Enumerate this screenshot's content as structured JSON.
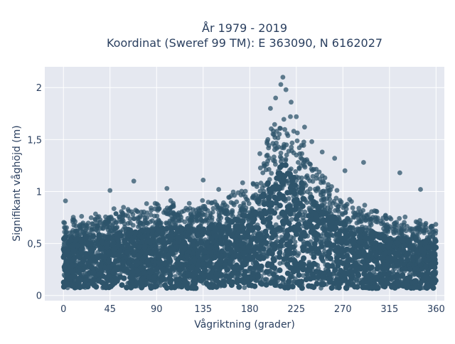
{
  "chart_data": {
    "type": "scatter",
    "title": "År 1979 - 2019",
    "subtitle": "Koordinat (Sweref 99 TM): E 363090, N 6162027",
    "xlabel": "Vågriktning (grader)",
    "ylabel": "Signifikant våghöjd (m)",
    "xlim": [
      -18,
      368
    ],
    "ylim": [
      -0.05,
      2.2
    ],
    "x_ticks": [
      0,
      45,
      90,
      135,
      180,
      225,
      270,
      315,
      360
    ],
    "x_tick_labels": [
      "0",
      "45",
      "90",
      "135",
      "180",
      "225",
      "270",
      "315",
      "360"
    ],
    "y_ticks": [
      0,
      0.5,
      1,
      1.5,
      2
    ],
    "y_tick_labels": [
      "0",
      "0,5",
      "1",
      "1,5",
      "2"
    ],
    "grid": true,
    "legend": "none",
    "colors": {
      "marker": "#2e546b",
      "plot_bg": "#e5e8f0",
      "grid": "#ffffff",
      "text": "#2a3f5f"
    },
    "series": [
      {
        "x_range": [
          0,
          360
        ],
        "height_min": 0.07,
        "upper_envelope": {
          "x": [
            0,
            20,
            45,
            70,
            90,
            110,
            135,
            160,
            180,
            195,
            205,
            212,
            225,
            240,
            255,
            270,
            290,
            315,
            340,
            360
          ],
          "y": [
            0.72,
            0.74,
            0.78,
            0.82,
            0.84,
            0.86,
            0.88,
            0.92,
            1.05,
            1.4,
            1.62,
            1.68,
            1.55,
            1.25,
            1.05,
            0.92,
            0.82,
            0.74,
            0.7,
            0.68
          ]
        },
        "outliers": [
          {
            "x": 212,
            "y": 2.1
          },
          {
            "x": 210,
            "y": 2.03
          },
          {
            "x": 215,
            "y": 1.98
          },
          {
            "x": 205,
            "y": 1.9
          },
          {
            "x": 220,
            "y": 1.86
          },
          {
            "x": 200,
            "y": 1.8
          },
          {
            "x": 225,
            "y": 1.72
          },
          {
            "x": 233,
            "y": 1.62
          },
          {
            "x": 240,
            "y": 1.48
          },
          {
            "x": 250,
            "y": 1.38
          },
          {
            "x": 262,
            "y": 1.32
          },
          {
            "x": 290,
            "y": 1.28
          },
          {
            "x": 325,
            "y": 1.18
          },
          {
            "x": 345,
            "y": 1.02
          },
          {
            "x": 68,
            "y": 1.1
          },
          {
            "x": 45,
            "y": 1.01
          },
          {
            "x": 100,
            "y": 1.03
          },
          {
            "x": 135,
            "y": 1.11
          },
          {
            "x": 150,
            "y": 1.02
          },
          {
            "x": 2,
            "y": 0.91
          },
          {
            "x": 272,
            "y": 1.2
          }
        ]
      }
    ]
  }
}
